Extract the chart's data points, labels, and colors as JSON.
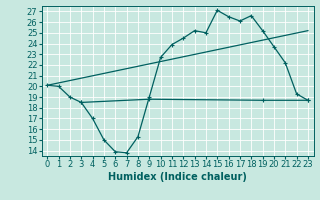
{
  "xlabel": "Humidex (Indice chaleur)",
  "ylabel": "",
  "background_color": "#c8e8e0",
  "grid_color": "#ffffff",
  "line_color": "#006060",
  "xlim": [
    -0.5,
    23.5
  ],
  "ylim": [
    13.5,
    27.5
  ],
  "xticks": [
    0,
    1,
    2,
    3,
    4,
    5,
    6,
    7,
    8,
    9,
    10,
    11,
    12,
    13,
    14,
    15,
    16,
    17,
    18,
    19,
    20,
    21,
    22,
    23
  ],
  "yticks": [
    14,
    15,
    16,
    17,
    18,
    19,
    20,
    21,
    22,
    23,
    24,
    25,
    26,
    27
  ],
  "curve1_x": [
    0,
    1,
    2,
    3,
    4,
    5,
    6,
    7,
    8,
    9,
    10,
    11,
    12,
    13,
    14,
    15,
    16,
    17,
    18,
    19,
    20,
    21,
    22,
    23
  ],
  "curve1_y": [
    20.1,
    20.0,
    19.0,
    18.5,
    17.0,
    15.0,
    13.9,
    13.8,
    15.3,
    19.0,
    22.7,
    23.9,
    24.5,
    25.2,
    25.0,
    27.1,
    26.5,
    26.1,
    26.6,
    25.2,
    23.7,
    22.2,
    19.3,
    18.7
  ],
  "curve2_x": [
    0,
    23
  ],
  "curve2_y": [
    20.1,
    25.2
  ],
  "curve3_x": [
    3,
    9,
    19,
    23
  ],
  "curve3_y": [
    18.5,
    18.8,
    18.7,
    18.7
  ],
  "font_size_label": 7,
  "font_size_tick": 6
}
